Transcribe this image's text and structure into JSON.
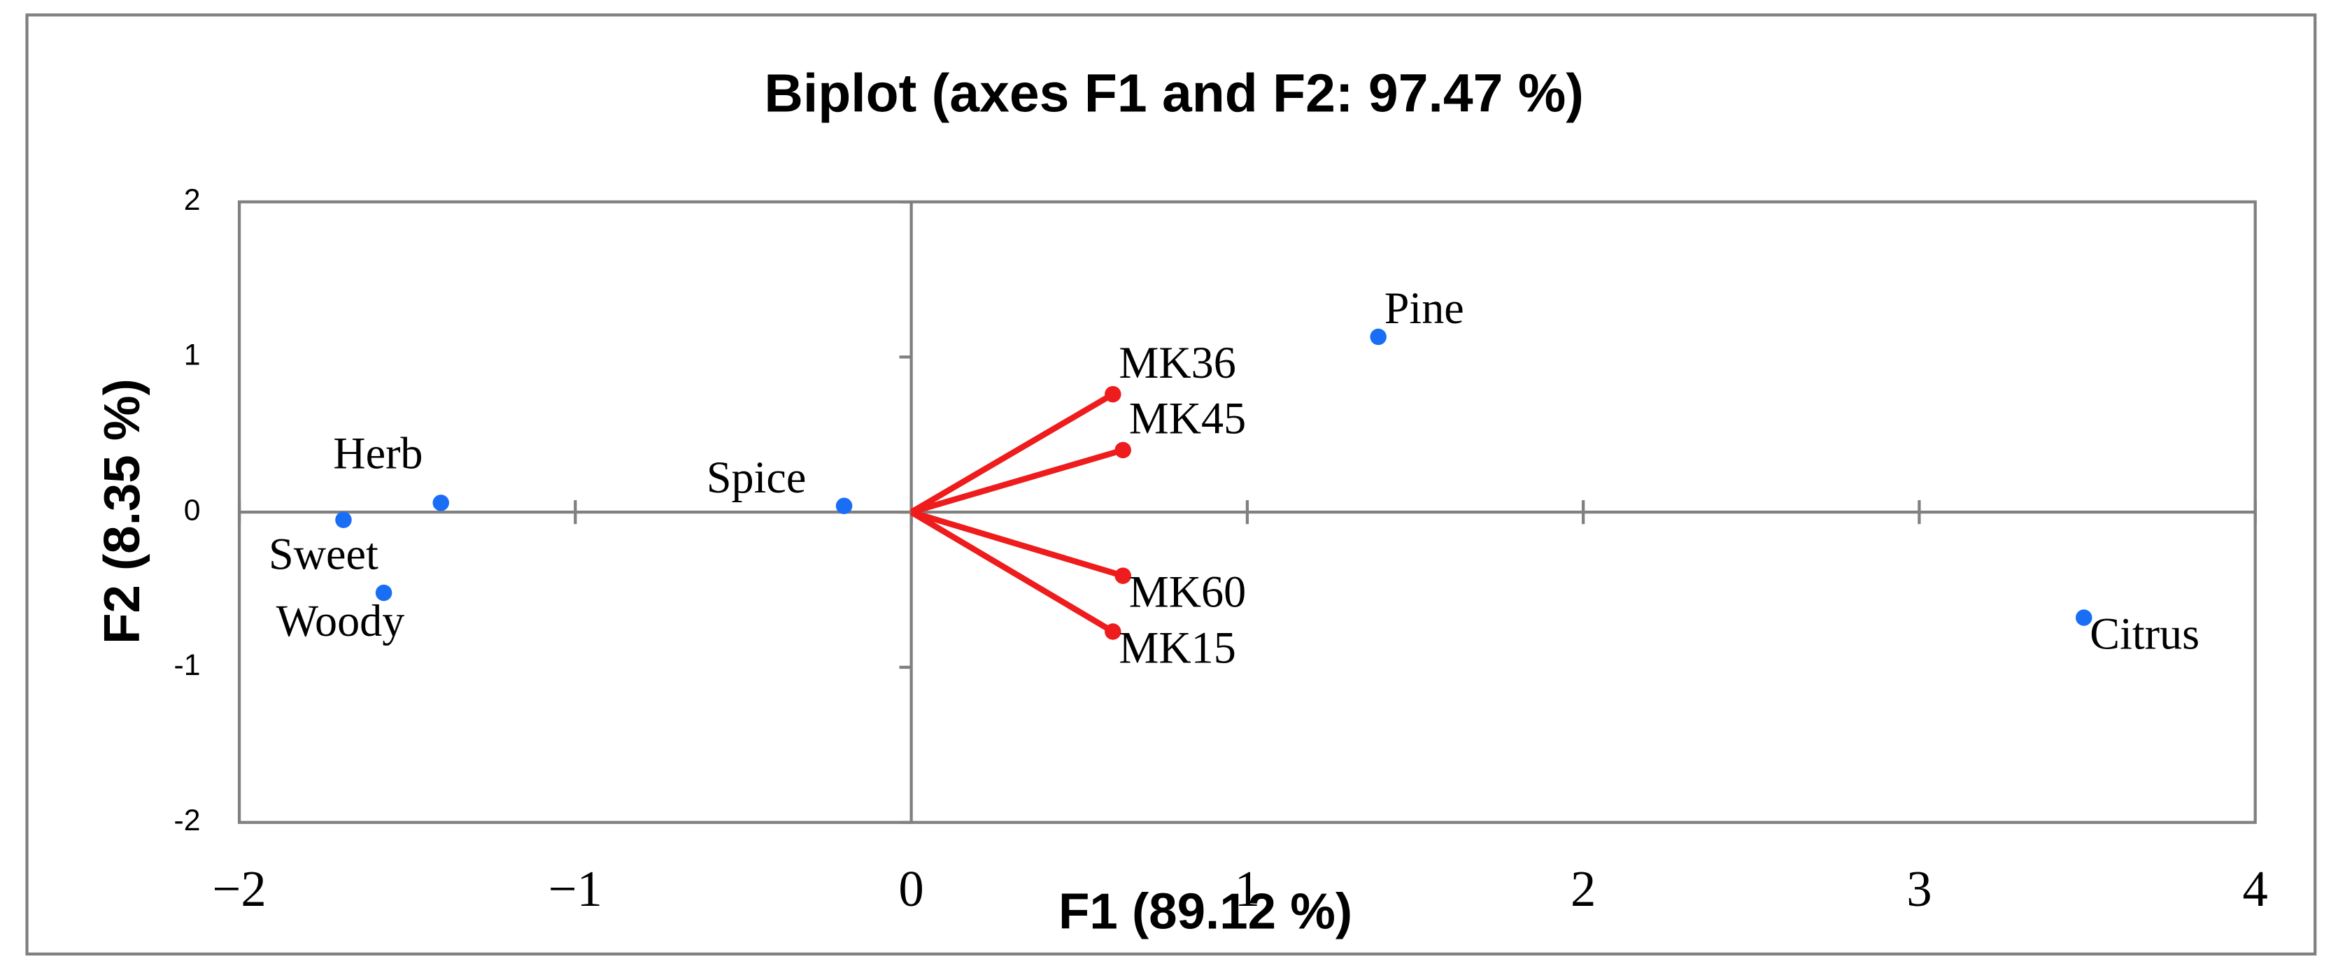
{
  "chart_data": {
    "type": "biplot",
    "title": "Biplot (axes F1 and F2: 97.47 %)",
    "x_label": "F1 (89.12 %)",
    "y_label": "F2 (8.35 %)",
    "xlim": [
      -2,
      4
    ],
    "ylim": [
      -2,
      2
    ],
    "xticks": [
      {
        "value": -2,
        "label": "−2"
      },
      {
        "value": -1,
        "label": "−1"
      },
      0,
      1,
      2,
      3,
      4
    ],
    "yticks": [
      -2,
      -1,
      0,
      1,
      2
    ],
    "points": {
      "color": "#1a6ef5",
      "labels": [
        "Herb",
        "Sweet",
        "Woody",
        "Spice",
        "Pine",
        "Citrus"
      ],
      "x": [
        -1.4,
        -1.69,
        -1.57,
        -0.2,
        1.39,
        3.49
      ],
      "y": [
        0.06,
        -0.05,
        -0.52,
        0.04,
        1.13,
        -0.68
      ]
    },
    "vectors": {
      "color": "#ee1c1c",
      "labels": [
        "MK36",
        "MK45",
        "MK60",
        "MK15"
      ],
      "x": [
        0.6,
        0.63,
        0.63,
        0.6
      ],
      "y": [
        0.76,
        0.4,
        -0.41,
        -0.77
      ]
    }
  }
}
